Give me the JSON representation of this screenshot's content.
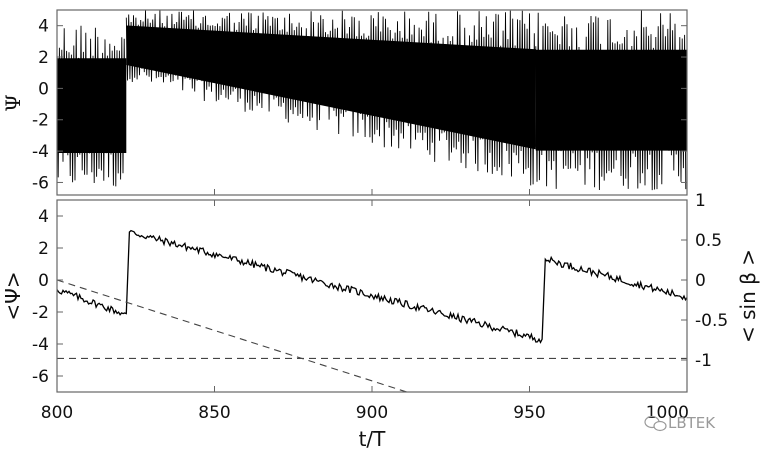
{
  "chart_data": [
    {
      "type": "line",
      "panel": "top",
      "ylabel": "Ψ",
      "xlim": [
        800,
        1000
      ],
      "ylim": [
        -6.8,
        5
      ],
      "yticks": [
        4,
        2,
        0,
        -2,
        -4,
        -6
      ],
      "ytick_labels": [
        "4",
        "2",
        "0",
        "-2",
        "-4",
        "-6"
      ],
      "segments": [
        {
          "x0": 800,
          "x1": 822,
          "low_start": -6.5,
          "low_end": -6.5,
          "high_start": 4.3,
          "high_end": 4.3
        },
        {
          "x0": 822,
          "x1": 952,
          "low_start": 0.5,
          "low_end": -6.4,
          "high_start": 5,
          "high_end": 5
        },
        {
          "x0": 952,
          "x1": 1000,
          "low_start": -6.5,
          "low_end": -6.5,
          "high_start": 5,
          "high_end": 5
        }
      ]
    },
    {
      "type": "line",
      "panel": "bottom",
      "xlabel": "t/T",
      "ylabel": "<Ψ>",
      "y2label": "< sin β >",
      "xlim": [
        800,
        1000
      ],
      "ylim": [
        -7,
        5
      ],
      "y2lim": [
        -1.4,
        1
      ],
      "xticks": [
        800,
        850,
        900,
        950,
        1000
      ],
      "xtick_labels": [
        "800",
        "850",
        "900",
        "950",
        "1000"
      ],
      "yticks": [
        4,
        2,
        0,
        -2,
        -4,
        -6
      ],
      "ytick_labels": [
        "4",
        "2",
        "0",
        "-2",
        "-4",
        "-6"
      ],
      "y2ticks": [
        1,
        0.5,
        0,
        -0.5,
        -1
      ],
      "y2tick_labels": [
        "1",
        "0.5",
        "0",
        "-0.5",
        "-1"
      ],
      "series": [
        {
          "style": "solid",
          "x": [
            800,
            821,
            822,
            823,
            953,
            954,
            955,
            1000
          ],
          "y": [
            -0.6,
            -2.1,
            -2.1,
            3.0,
            -3.7,
            -3.7,
            1.3,
            -1.1
          ]
        },
        {
          "style": "dashed",
          "x": [
            800,
            911
          ],
          "y": [
            0,
            -7
          ]
        },
        {
          "style": "dashed",
          "x": [
            800,
            1000
          ],
          "y": [
            -4.9,
            -4.9
          ]
        }
      ]
    }
  ],
  "watermark": "LBTEK",
  "colors": {
    "line": "#000000",
    "dash": "#444444",
    "frame": "#666666"
  }
}
